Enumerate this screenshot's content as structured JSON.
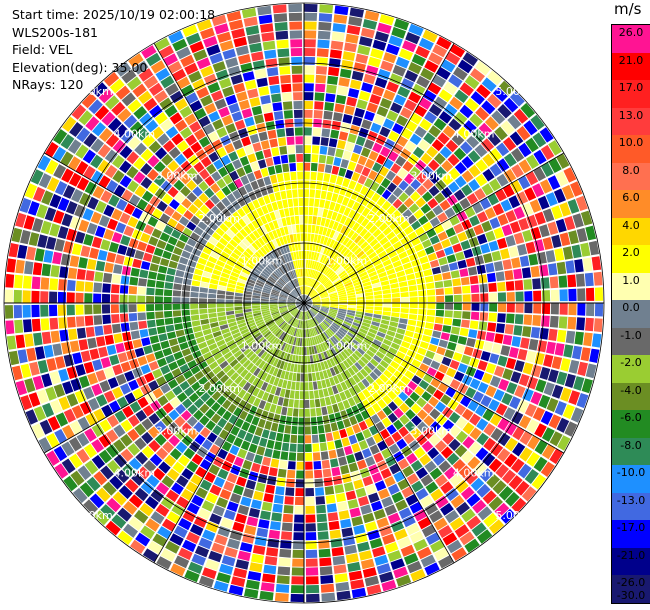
{
  "info": {
    "start_time": "Start time: 2025/10/19 02:00:18",
    "instrument": "WLS200s-181",
    "field": "Field: VEL",
    "elevation": "Elevation(deg): 35.00",
    "nrays": "NRays: 120"
  },
  "colorbar": {
    "unit": "m/s",
    "ticks": [
      "26.0",
      "21.0",
      "17.0",
      "13.0",
      "10.0",
      "8.0",
      "6.0",
      "4.0",
      "2.0",
      "1.0",
      "0.0",
      "-1.0",
      "-2.0",
      "-4.0",
      "-6.0",
      "-8.0",
      "-10.0",
      "-13.0",
      "-17.0",
      "-21.0",
      "-26.0",
      "-30.0"
    ],
    "colors": [
      "#ff1493",
      "#ff0000",
      "#ff2020",
      "#ff3c3c",
      "#ff5a28",
      "#ff7050",
      "#ff8c28",
      "#ffd700",
      "#ffff00",
      "#ffffb0",
      "#708090",
      "#696969",
      "#9acd32",
      "#6b8e23",
      "#228b22",
      "#2e8b57",
      "#1e90ff",
      "#4169e1",
      "#0000ff",
      "#00008b",
      "#191970"
    ]
  },
  "chart_data": {
    "type": "ppi",
    "field": "VEL",
    "units": "m/s",
    "n_rays": 120,
    "elevation_deg": 35.0,
    "range_ring_labels": [
      "1.00km",
      "2.00km",
      "3.00km",
      "4.00km",
      "5.00km"
    ],
    "max_range_km": 5.0,
    "pattern": {
      "inner_range_km": 2.0,
      "inner_positive_sector": "north to east, yellow (2.0 to 4.0)",
      "inner_negative_sector": "south-west, green (-2.0 to -1.0)",
      "near_zero_band": "grey (-1.0 to 1.0) along east-west",
      "outer": "noisy, all classes mixed"
    }
  }
}
